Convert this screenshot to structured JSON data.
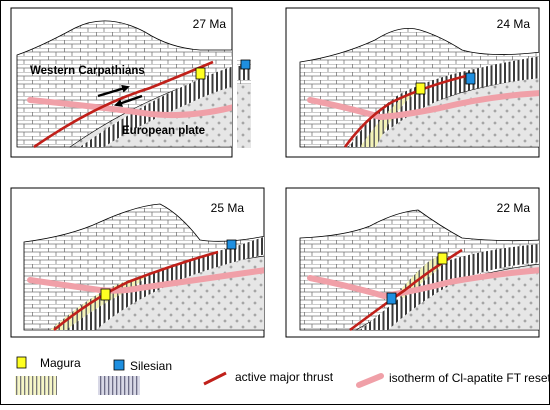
{
  "figure": {
    "panels": [
      {
        "id": "p27",
        "age_label": "27 Ma"
      },
      {
        "id": "p24",
        "age_label": "24 Ma"
      },
      {
        "id": "p25",
        "age_label": "25 Ma"
      },
      {
        "id": "p22",
        "age_label": "22 Ma"
      }
    ],
    "annotations": {
      "western_carpathians": "Western Carpathians",
      "european_plate": "European plate"
    },
    "legend": {
      "magura": "Magura",
      "silesian": "Silesian",
      "thrust": "active major thrust",
      "isotherm": "isotherm of Cl-apatite FT reset"
    },
    "colors": {
      "magura_marker": "#ffff22",
      "silesian_marker": "#1e8fe0",
      "magura_fill": "#f2f2b8",
      "silesian_fill": "#ececf4",
      "thrust": "#c0201a",
      "isotherm": "#f0a0a8",
      "brick_lines": "#666666",
      "cross_fill": "#e6e6e6"
    }
  }
}
